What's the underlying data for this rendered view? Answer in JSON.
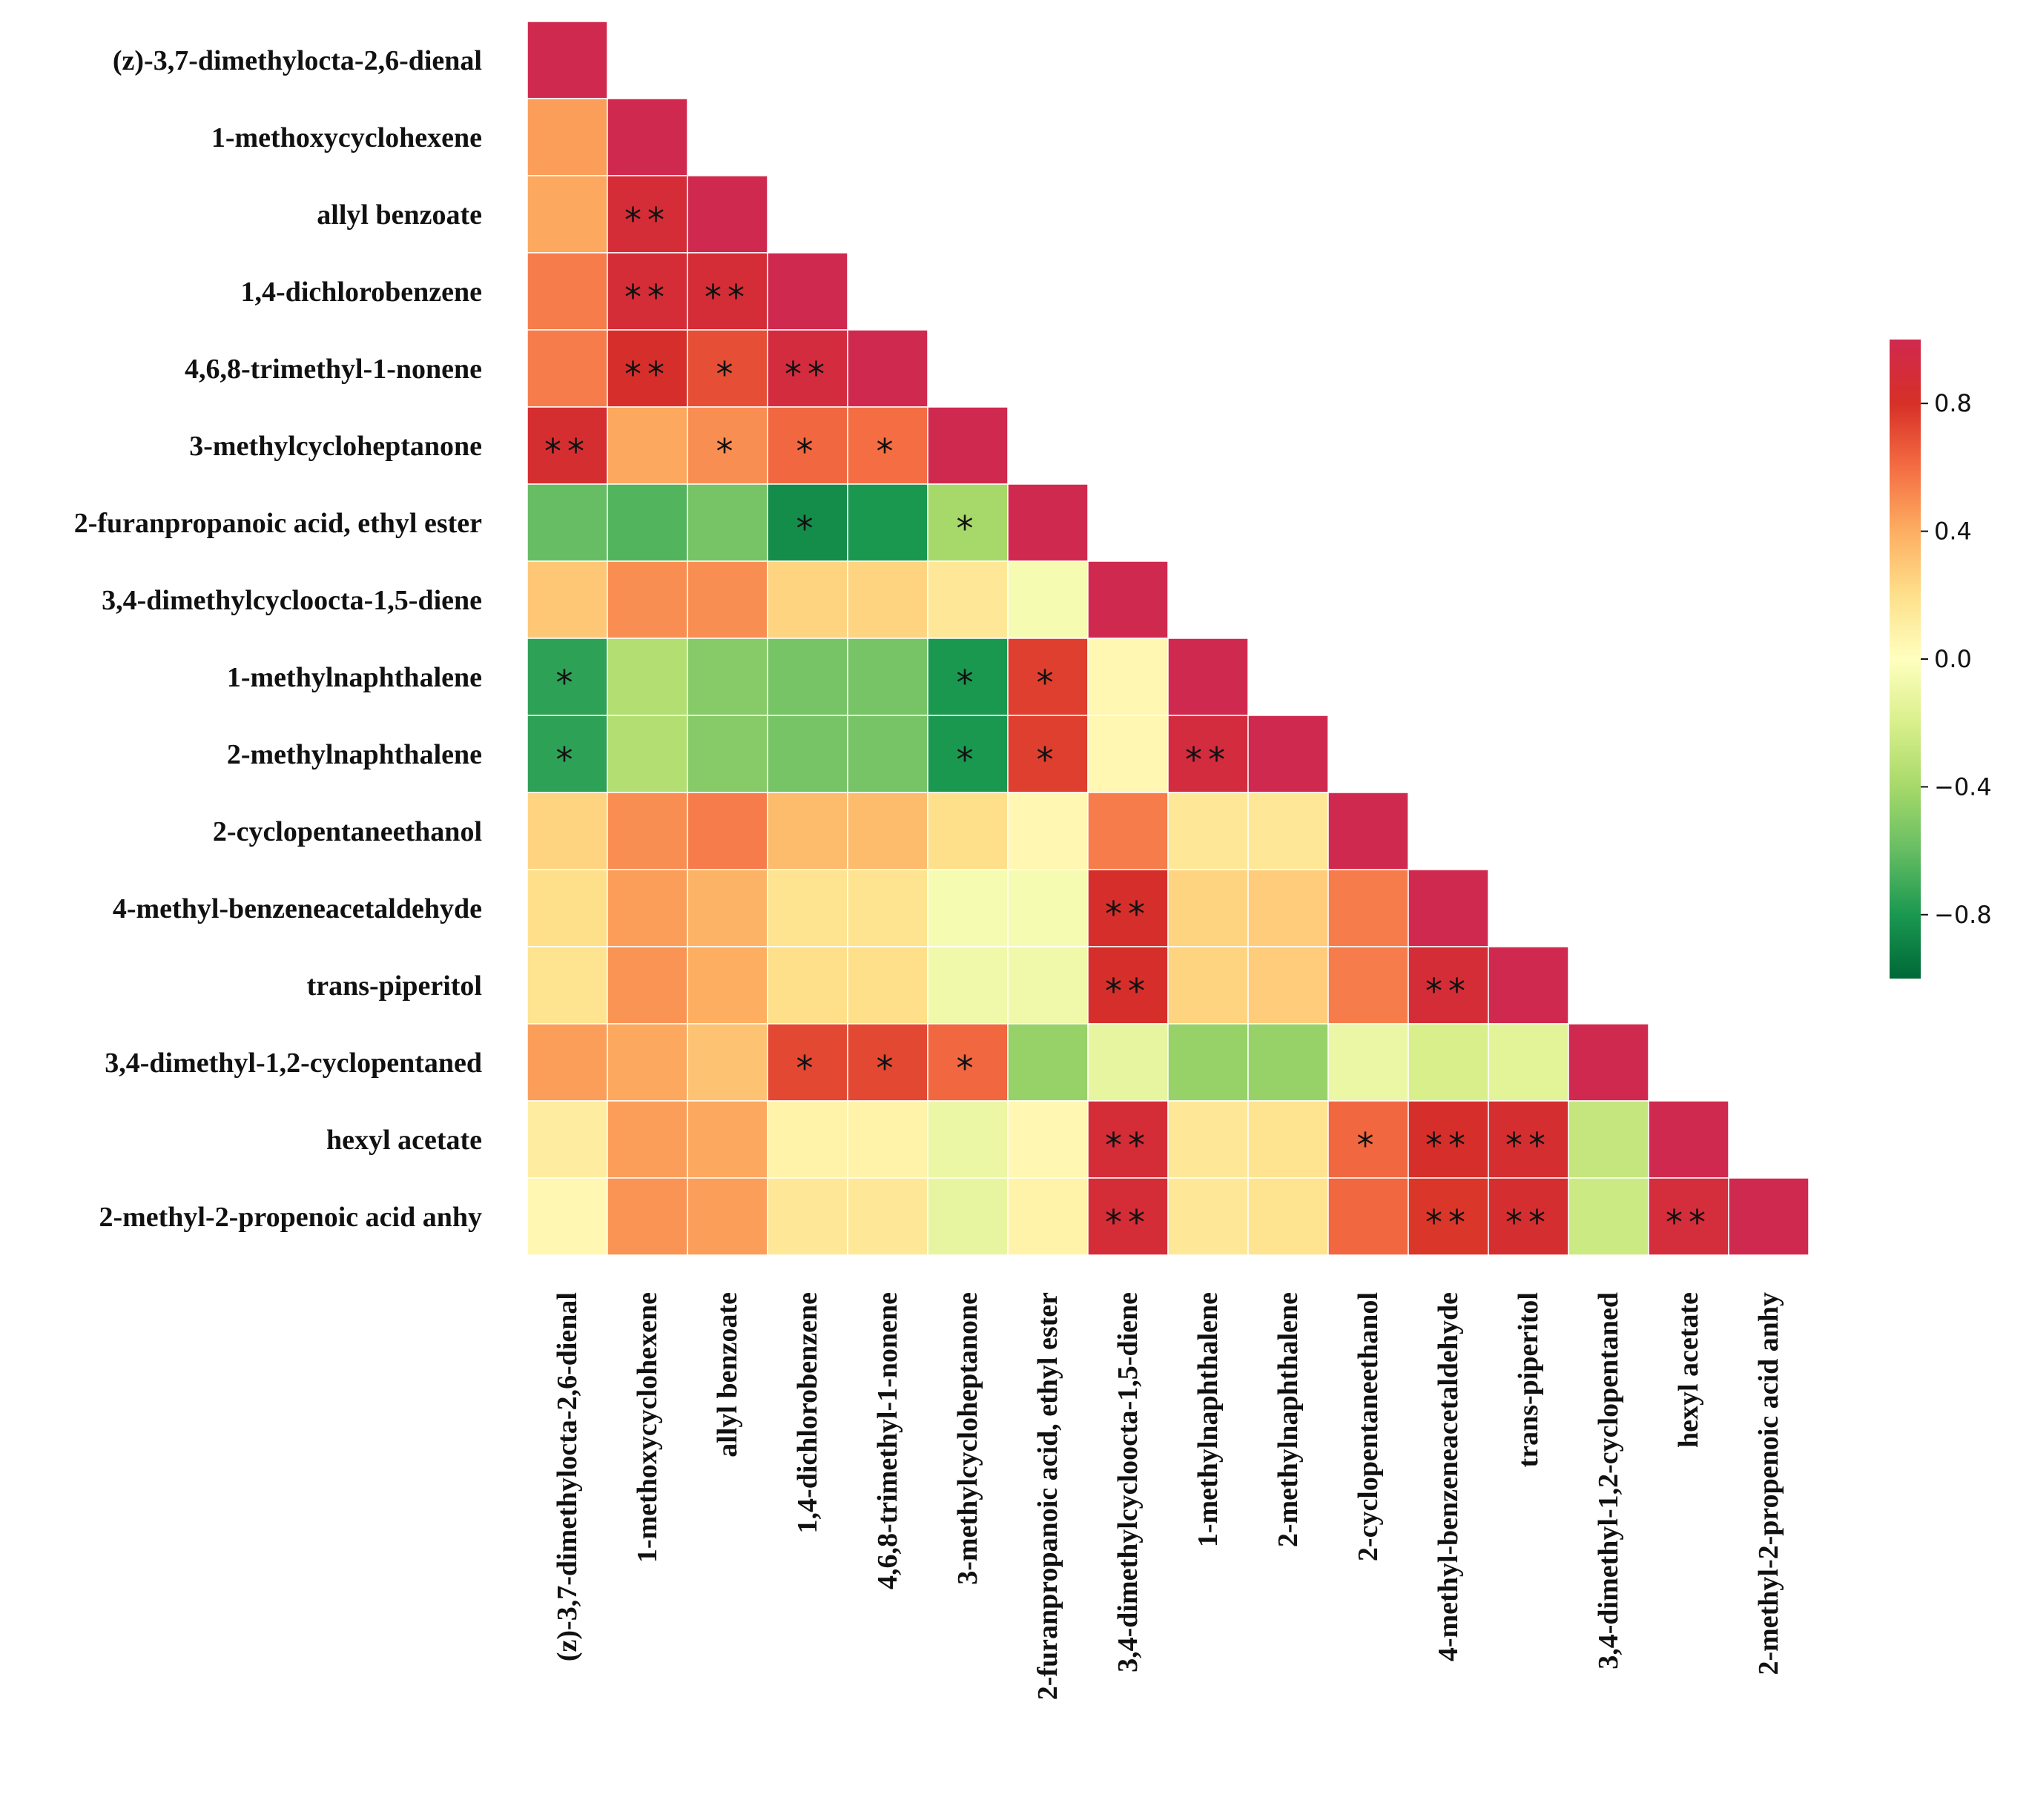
{
  "chart_data": {
    "type": "heatmap",
    "subtype": "lower-triangular correlation matrix",
    "labels": [
      "(z)-3,7-dimethylocta-2,6-dienal",
      "1-methoxycyclohexene",
      "allyl benzoate",
      "1,4-dichlorobenzene",
      "4,6,8-trimethyl-1-nonene",
      "3-methylcycloheptanone",
      "2-furanpropanoic acid, ethyl ester",
      "3,4-dimethylcycloocta-1,5-diene",
      "1-methylnaphthalene",
      "2-methylnaphthalene",
      "2-cyclopentaneethanol",
      "4-methyl-benzeneacetaldehyde",
      "trans-piperitol",
      "3,4-dimethyl-1,2-cyclopentaned",
      "hexyl acetate",
      "2-methyl-2-propenoic acid anhy"
    ],
    "matrix": [
      [
        1.0
      ],
      [
        0.45,
        1.0
      ],
      [
        0.42,
        0.88,
        1.0
      ],
      [
        0.55,
        0.88,
        0.88,
        1.0
      ],
      [
        0.55,
        0.82,
        0.7,
        0.92,
        1.0
      ],
      [
        0.85,
        0.42,
        0.5,
        0.62,
        0.6,
        1.0
      ],
      [
        -0.6,
        -0.65,
        -0.55,
        -0.85,
        -0.8,
        -0.4,
        1.0
      ],
      [
        0.3,
        0.5,
        0.5,
        0.25,
        0.25,
        0.15,
        -0.05,
        1.0
      ],
      [
        -0.75,
        -0.35,
        -0.5,
        -0.55,
        -0.55,
        -0.8,
        0.75,
        0.05,
        1.0
      ],
      [
        -0.75,
        -0.35,
        -0.5,
        -0.55,
        -0.55,
        -0.8,
        0.75,
        0.05,
        0.92,
        1.0
      ],
      [
        0.25,
        0.5,
        0.55,
        0.35,
        0.35,
        0.2,
        0.05,
        0.55,
        0.15,
        0.15,
        1.0
      ],
      [
        0.2,
        0.45,
        0.38,
        0.18,
        0.18,
        -0.05,
        -0.05,
        0.82,
        0.25,
        0.28,
        0.55,
        1.0
      ],
      [
        0.18,
        0.48,
        0.4,
        0.2,
        0.2,
        -0.08,
        -0.08,
        0.82,
        0.25,
        0.28,
        0.55,
        0.88,
        1.0
      ],
      [
        0.45,
        0.42,
        0.32,
        0.72,
        0.72,
        0.62,
        -0.45,
        -0.12,
        -0.45,
        -0.45,
        -0.1,
        -0.2,
        -0.15,
        1.0
      ],
      [
        0.12,
        0.45,
        0.42,
        0.08,
        0.08,
        -0.1,
        0.05,
        0.88,
        0.15,
        0.18,
        0.62,
        0.82,
        0.85,
        -0.28,
        1.0
      ],
      [
        0.05,
        0.48,
        0.45,
        0.15,
        0.15,
        -0.12,
        0.08,
        0.88,
        0.15,
        0.18,
        0.62,
        0.78,
        0.85,
        -0.25,
        0.9,
        1.0
      ]
    ],
    "significance": [
      [
        ""
      ],
      [
        "",
        ""
      ],
      [
        "",
        "**",
        ""
      ],
      [
        "",
        "**",
        "**",
        ""
      ],
      [
        "",
        "**",
        "*",
        "**",
        ""
      ],
      [
        "**",
        "",
        "*",
        "*",
        "*",
        ""
      ],
      [
        "",
        "",
        "",
        "*",
        "",
        "*",
        ""
      ],
      [
        "",
        "",
        "",
        "",
        "",
        "",
        "",
        ""
      ],
      [
        "*",
        "",
        "",
        "",
        "",
        "*",
        "*",
        "",
        ""
      ],
      [
        "*",
        "",
        "",
        "",
        "",
        "*",
        "*",
        "",
        "**",
        ""
      ],
      [
        "",
        "",
        "",
        "",
        "",
        "",
        "",
        "",
        "",
        "",
        ""
      ],
      [
        "",
        "",
        "",
        "",
        "",
        "",
        "",
        "**",
        "",
        "",
        "",
        ""
      ],
      [
        "",
        "",
        "",
        "",
        "",
        "",
        "",
        "**",
        "",
        "",
        "",
        "**",
        ""
      ],
      [
        "",
        "",
        "",
        "*",
        "*",
        "*",
        "",
        "",
        "",
        "",
        "",
        "",
        "",
        ""
      ],
      [
        "",
        "",
        "",
        "",
        "",
        "",
        "",
        "**",
        "",
        "",
        "*",
        "**",
        "**",
        "",
        ""
      ],
      [
        "",
        "",
        "",
        "",
        "",
        "",
        "",
        "**",
        "",
        "",
        "",
        "**",
        "**",
        "",
        "**",
        ""
      ]
    ],
    "colorbar": {
      "range": [
        -1.0,
        1.0
      ],
      "ticks": [
        0.8,
        0.4,
        0.0,
        -0.4,
        -0.8
      ],
      "tick_labels": [
        "0.8",
        "0.4",
        "0.0",
        "−0.4",
        "−0.8"
      ],
      "colormap": "RdYlGn_r",
      "stops": [
        "#006837",
        "#1a9850",
        "#66bd63",
        "#a6d96a",
        "#d9ef8b",
        "#ffffbf",
        "#fee08b",
        "#fdae61",
        "#f46d43",
        "#d73027",
        "#d0294f"
      ]
    }
  }
}
